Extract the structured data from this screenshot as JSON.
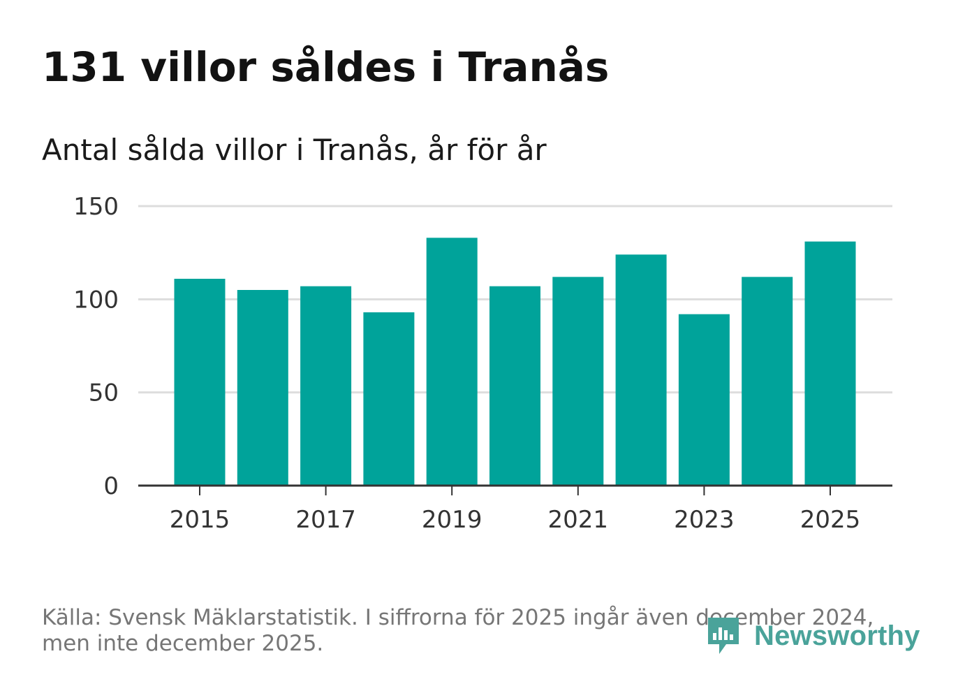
{
  "title": "131 villor såldes i Tranås",
  "subtitle": "Antal sålda villor i Tranås, år för år",
  "footer": {
    "line1": "Källa: Svensk Mäklarstatistik. I siffrorna för 2025 ingår även december 2024,",
    "line2": "men inte december 2025."
  },
  "brand": {
    "name": "Newsworthy",
    "color": "#4aa39a"
  },
  "colors": {
    "bar": "#00a39a",
    "grid": "#dddddd",
    "axis": "#333333"
  },
  "chart_data": {
    "type": "bar",
    "title": "131 villor såldes i Tranås",
    "subtitle": "Antal sålda villor i Tranås, år för år",
    "xlabel": "",
    "ylabel": "",
    "categories": [
      "2015",
      "2016",
      "2017",
      "2018",
      "2019",
      "2020",
      "2021",
      "2022",
      "2023",
      "2024",
      "2025"
    ],
    "values": [
      111,
      105,
      107,
      93,
      133,
      107,
      112,
      124,
      92,
      112,
      131
    ],
    "ylim": [
      0,
      150
    ],
    "yticks": [
      0,
      50,
      100,
      150
    ],
    "xtick_labels": [
      "2015",
      "2017",
      "2019",
      "2021",
      "2023",
      "2025"
    ],
    "grid": true,
    "legend": "none"
  }
}
